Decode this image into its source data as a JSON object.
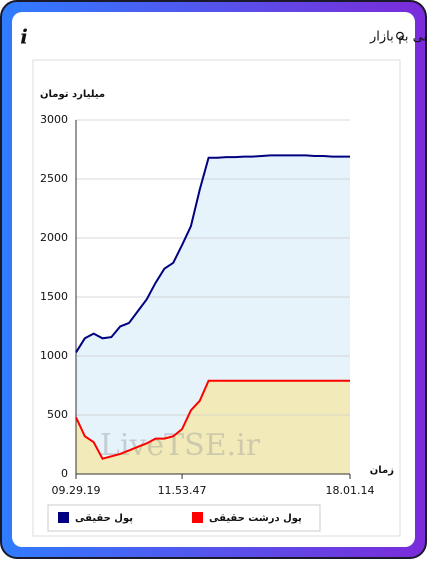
{
  "header": {
    "title": "برآیند ورود و خروج پول حقیقی و پول درشت حقیقی به بازار"
  },
  "chart_data": {
    "type": "area",
    "y_label": "میلیارد تومان",
    "x_label": "زمان",
    "watermark": "LiveTSE.ir",
    "categories": [
      "09.29.19",
      null,
      null,
      null,
      null,
      null,
      null,
      null,
      null,
      null,
      null,
      null,
      "11.53.47",
      null,
      null,
      null,
      null,
      null,
      null,
      null,
      null,
      null,
      null,
      null,
      null,
      null,
      null,
      null,
      null,
      null,
      null,
      "18.01.14"
    ],
    "series": [
      {
        "name": "پول حقیقی",
        "color": "#000080",
        "fill": "#e6f3fb",
        "values": [
          1030,
          1150,
          1190,
          1150,
          1160,
          1250,
          1280,
          1380,
          1480,
          1620,
          1740,
          1790,
          1940,
          2100,
          2410,
          2680,
          2680,
          2685,
          2685,
          2690,
          2690,
          2695,
          2700,
          2700,
          2700,
          2700,
          2700,
          2695,
          2695,
          2690,
          2690,
          2690
        ]
      },
      {
        "name": "پول درشت حقیقی",
        "color": "#ff0000",
        "fill": "#f2ebb9",
        "values": [
          480,
          320,
          270,
          130,
          150,
          170,
          200,
          230,
          260,
          300,
          300,
          320,
          380,
          540,
          620,
          790,
          790,
          790,
          790,
          790,
          790,
          790,
          790,
          790,
          790,
          790,
          790,
          790,
          790,
          790,
          790,
          790
        ]
      }
    ],
    "ylim": [
      0,
      3000
    ],
    "yticks": [
      0,
      500,
      1000,
      1500,
      2000,
      2500,
      3000
    ],
    "grid": true
  }
}
